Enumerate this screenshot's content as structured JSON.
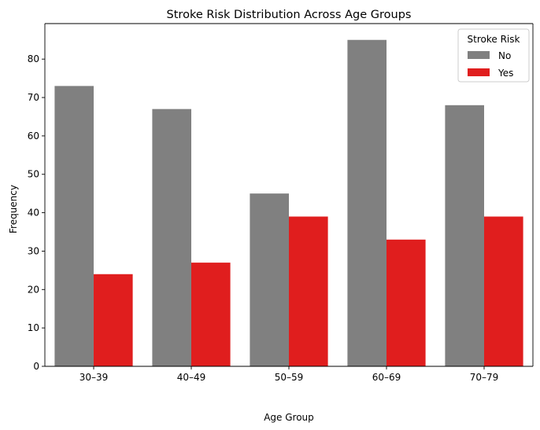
{
  "chart_data": {
    "type": "bar",
    "title": "Stroke Risk Distribution Across Age Groups",
    "xlabel": "Age Group",
    "ylabel": "Frequency",
    "categories": [
      "30–39",
      "40–49",
      "50–59",
      "60–69",
      "70–79"
    ],
    "series": [
      {
        "name": "No",
        "values": [
          73,
          67,
          45,
          85,
          68
        ],
        "color": "#808080"
      },
      {
        "name": "Yes",
        "values": [
          24,
          27,
          39,
          33,
          39
        ],
        "color": "#e01e1e"
      }
    ],
    "ylim": [
      0,
      89.25
    ],
    "yticks": [
      0,
      10,
      20,
      30,
      40,
      50,
      60,
      70,
      80
    ],
    "ytick_labels": [
      "0",
      "10",
      "20",
      "30",
      "40",
      "50",
      "60",
      "70",
      "80"
    ],
    "legend": {
      "title": "Stroke Risk",
      "position": "top-right"
    },
    "grid": false
  }
}
